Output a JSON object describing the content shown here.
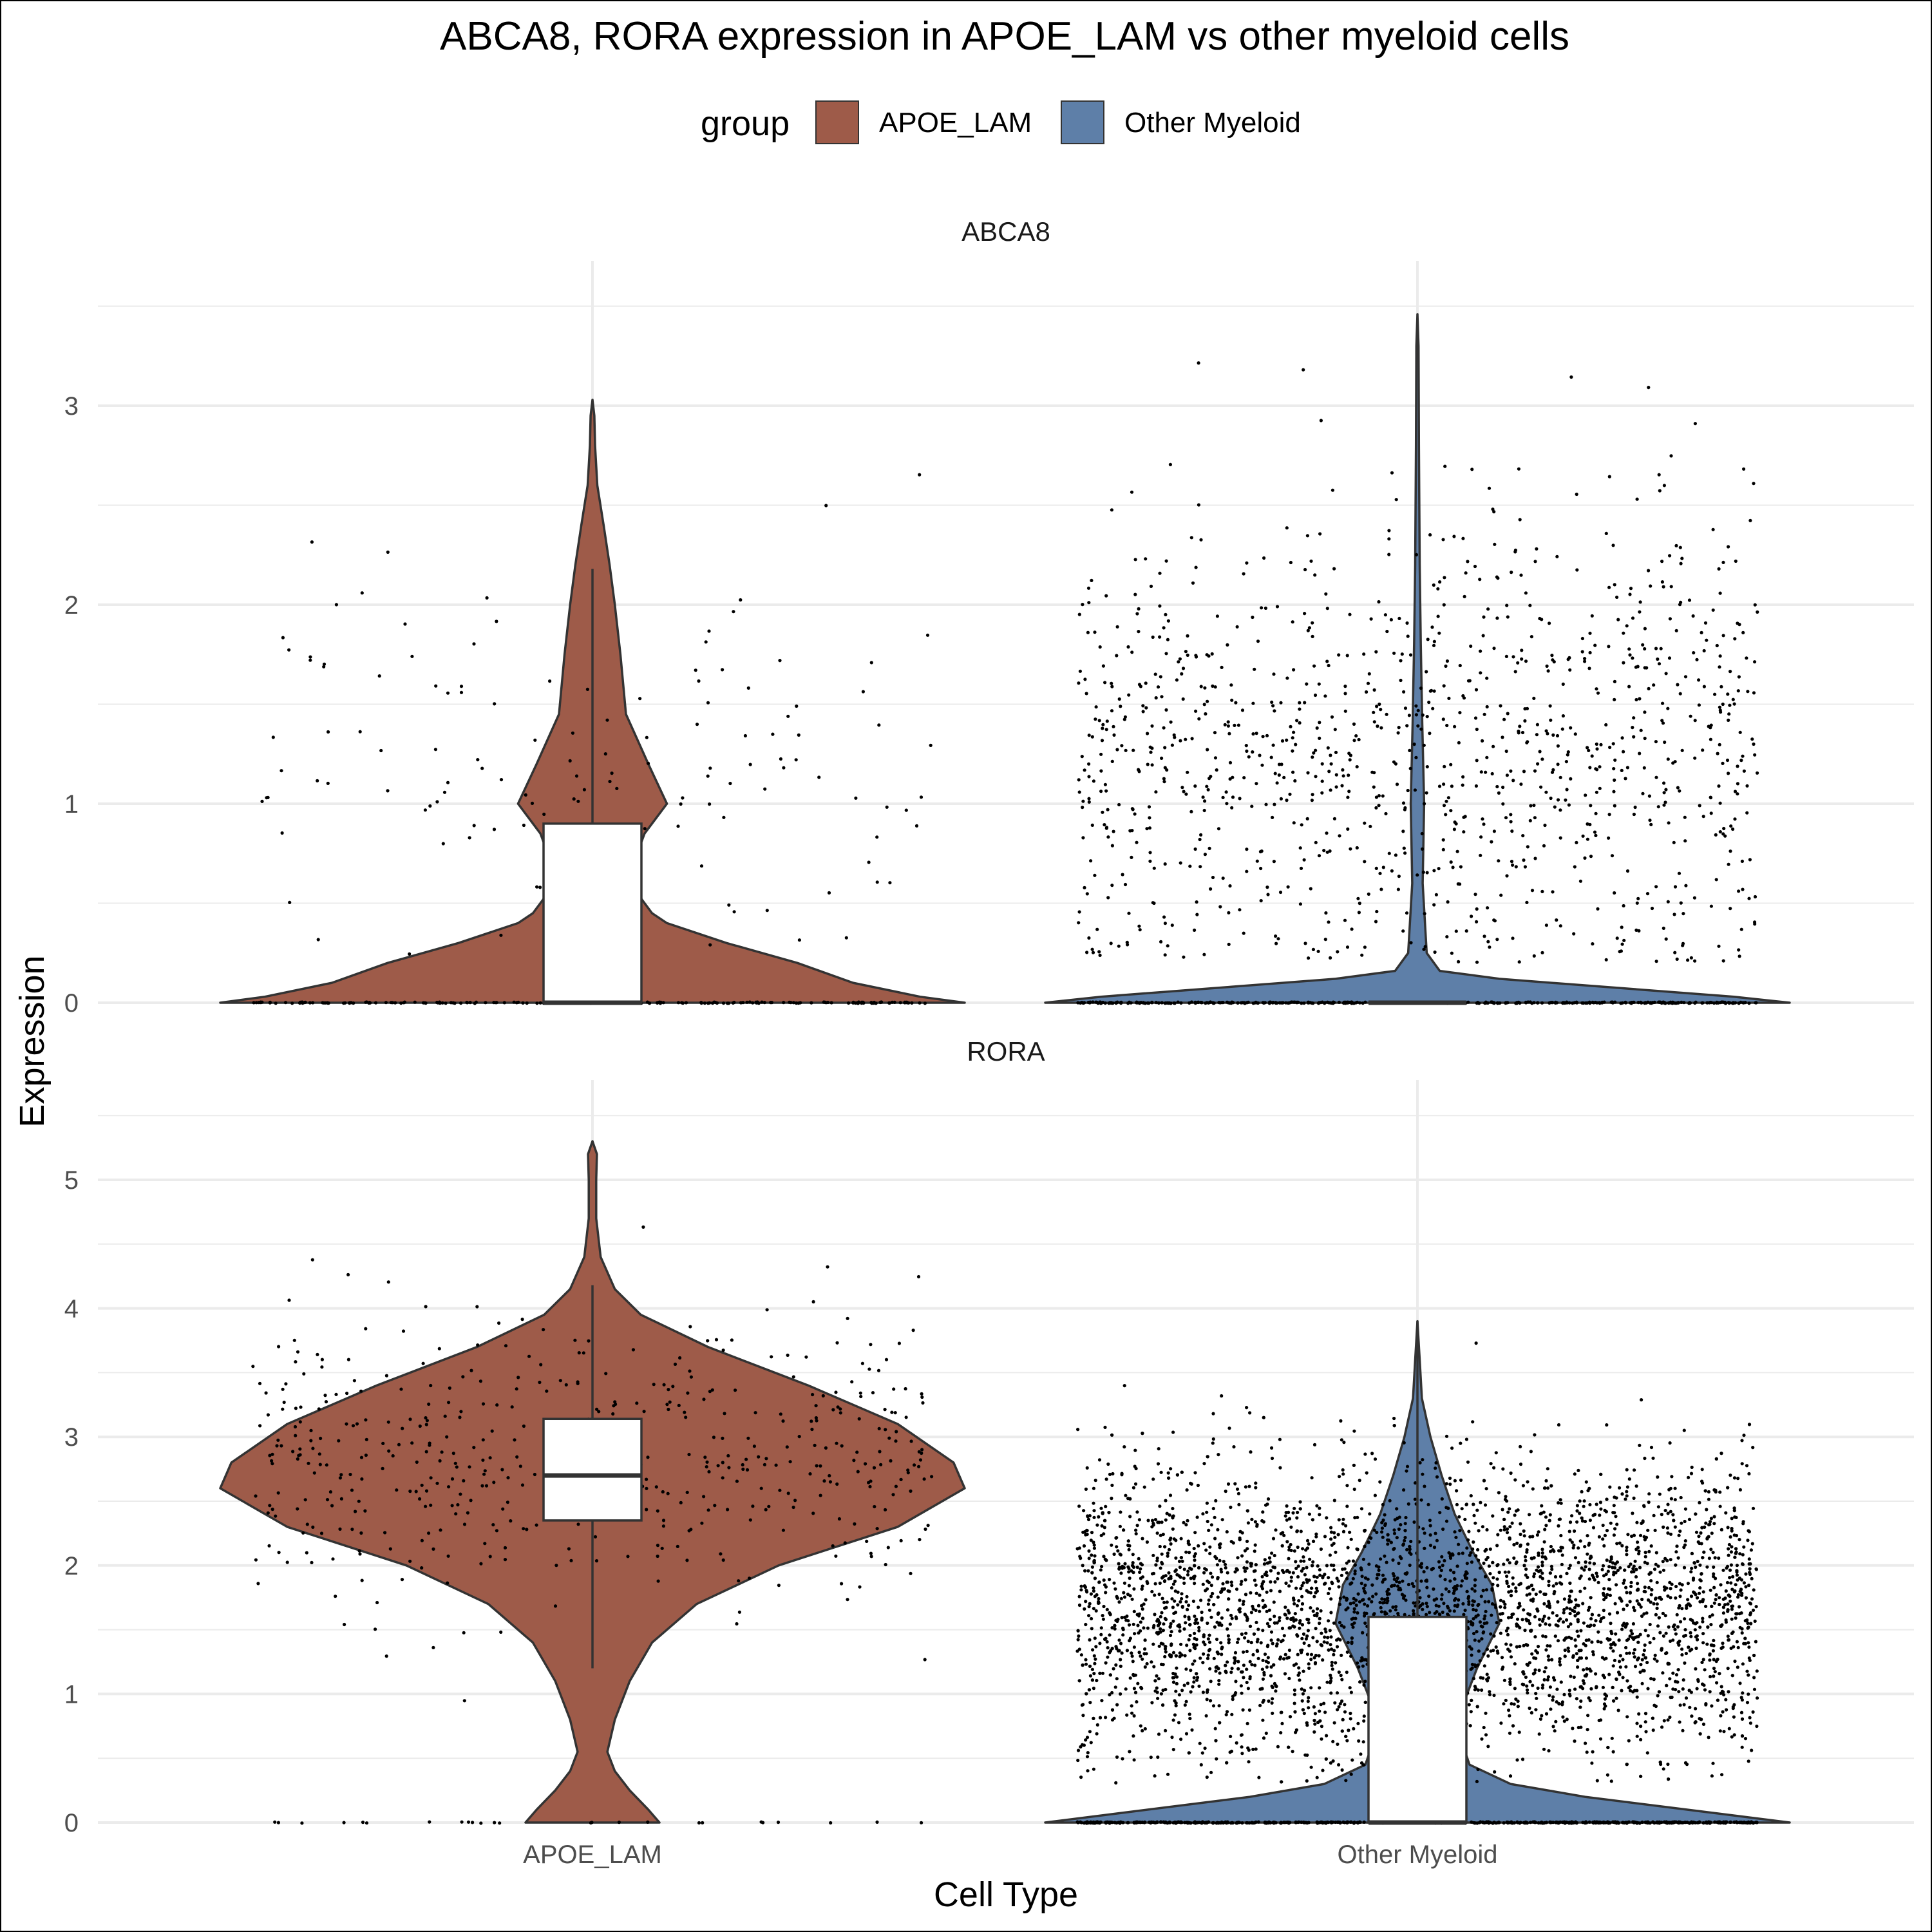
{
  "chart_data": {
    "type": "violin",
    "title": "ABCA8, RORA expression in APOE_LAM vs other myeloid cells",
    "xlabel": "Cell Type",
    "ylabel": "Expression",
    "categories": [
      "APOE_LAM",
      "Other Myeloid"
    ],
    "legend": {
      "title": "group",
      "placement": "top",
      "entries": [
        {
          "label": "APOE_LAM",
          "color": "#9e5b49"
        },
        {
          "label": "Other Myeloid",
          "color": "#5e7fa8"
        }
      ]
    },
    "grid": true,
    "overlays": [
      "jittered points",
      "boxplot"
    ],
    "panels": [
      {
        "name": "ABCA8",
        "ylim": [
          0,
          3.5
        ],
        "yticks": [
          0,
          1,
          2,
          3
        ],
        "groups": [
          {
            "category": "APOE_LAM",
            "min": 0,
            "max": 3.03,
            "box": {
              "q1": 0,
              "median": 0,
              "q3": 0.9,
              "whisker_low": 0,
              "whisker_high": 2.18
            },
            "zero_fraction": 0.7,
            "points_nonzero": 140,
            "points_zero": 200
          },
          {
            "category": "Other Myeloid",
            "min": 0,
            "max": 3.46,
            "box": {
              "q1": 0,
              "median": 0,
              "q3": 0,
              "whisker_low": 0,
              "whisker_high": 0
            },
            "zero_fraction": 0.9,
            "points_nonzero": 1100,
            "points_zero": 400
          }
        ]
      },
      {
        "name": "RORA",
        "ylim": [
          0,
          5.5
        ],
        "yticks": [
          0,
          1,
          2,
          3,
          4,
          5
        ],
        "groups": [
          {
            "category": "APOE_LAM",
            "min": 0,
            "max": 5.3,
            "box": {
              "q1": 2.35,
              "median": 2.7,
              "q3": 3.14,
              "whisker_low": 1.2,
              "whisker_high": 4.18
            },
            "zero_fraction": 0.05,
            "points_nonzero": 500,
            "points_zero": 25
          },
          {
            "category": "Other Myeloid",
            "min": 0,
            "max": 3.9,
            "box": {
              "q1": 0,
              "median": 0,
              "q3": 1.6,
              "whisker_low": 0,
              "whisker_high": 3.9
            },
            "zero_fraction": 0.55,
            "points_nonzero": 4000,
            "points_zero": 600
          }
        ]
      }
    ]
  }
}
